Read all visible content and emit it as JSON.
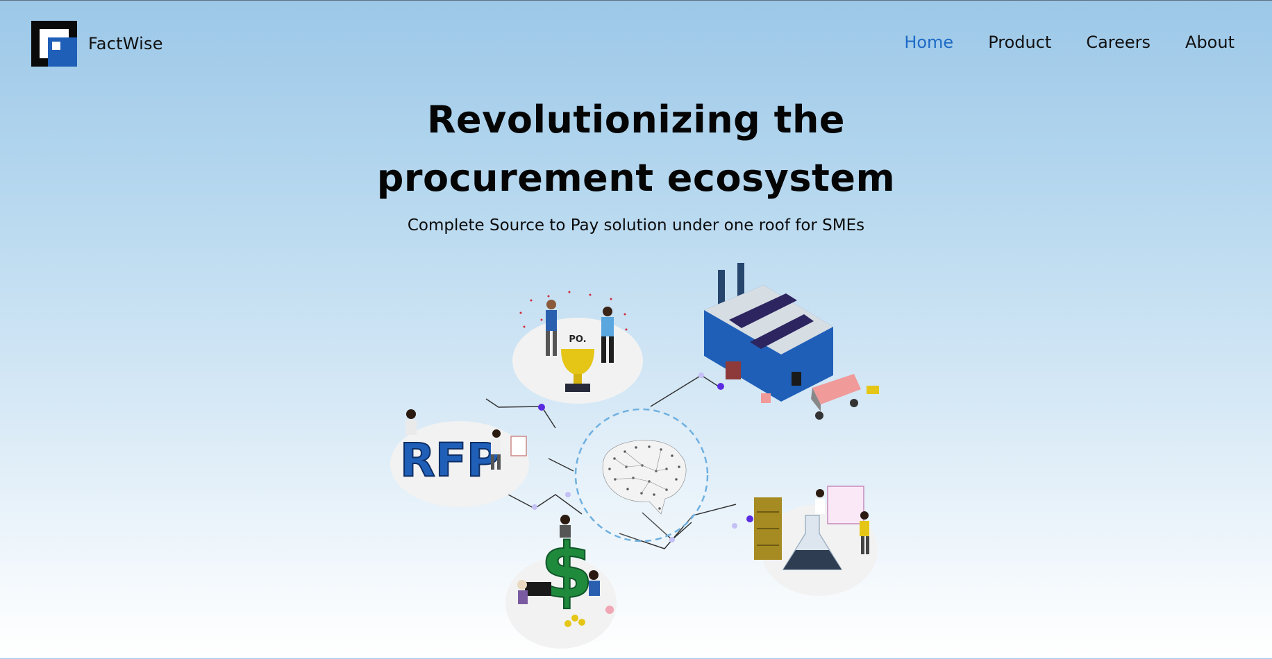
{
  "brand": {
    "name": "FactWise",
    "logo_colors": {
      "dark": "#0a0a0a",
      "accent": "#1f5fb8"
    }
  },
  "nav": {
    "items": [
      {
        "label": "Home",
        "active": true
      },
      {
        "label": "Product",
        "active": false
      },
      {
        "label": "Careers",
        "active": false
      },
      {
        "label": "About",
        "active": false
      }
    ],
    "active_color": "#1e6bc6"
  },
  "hero": {
    "title_line1": "Revolutionizing the",
    "title_line2": "procurement ecosystem",
    "subtitle": "Complete Source to Pay solution under one roof for SMEs"
  },
  "illustration": {
    "po_label": "PO.",
    "rfp_label": "RFP",
    "dollar_label": "$",
    "icons": [
      "trophy-icon",
      "factory-icon",
      "truck-icon",
      "brain-icon",
      "rfp-icon",
      "dollar-icon",
      "lab-flask-icon"
    ],
    "colors": {
      "primary_blue": "#1f5fb8",
      "node_purple": "#5b2be0",
      "dollar_green": "#1f8a3c",
      "trophy_yellow": "#e5c617"
    }
  }
}
